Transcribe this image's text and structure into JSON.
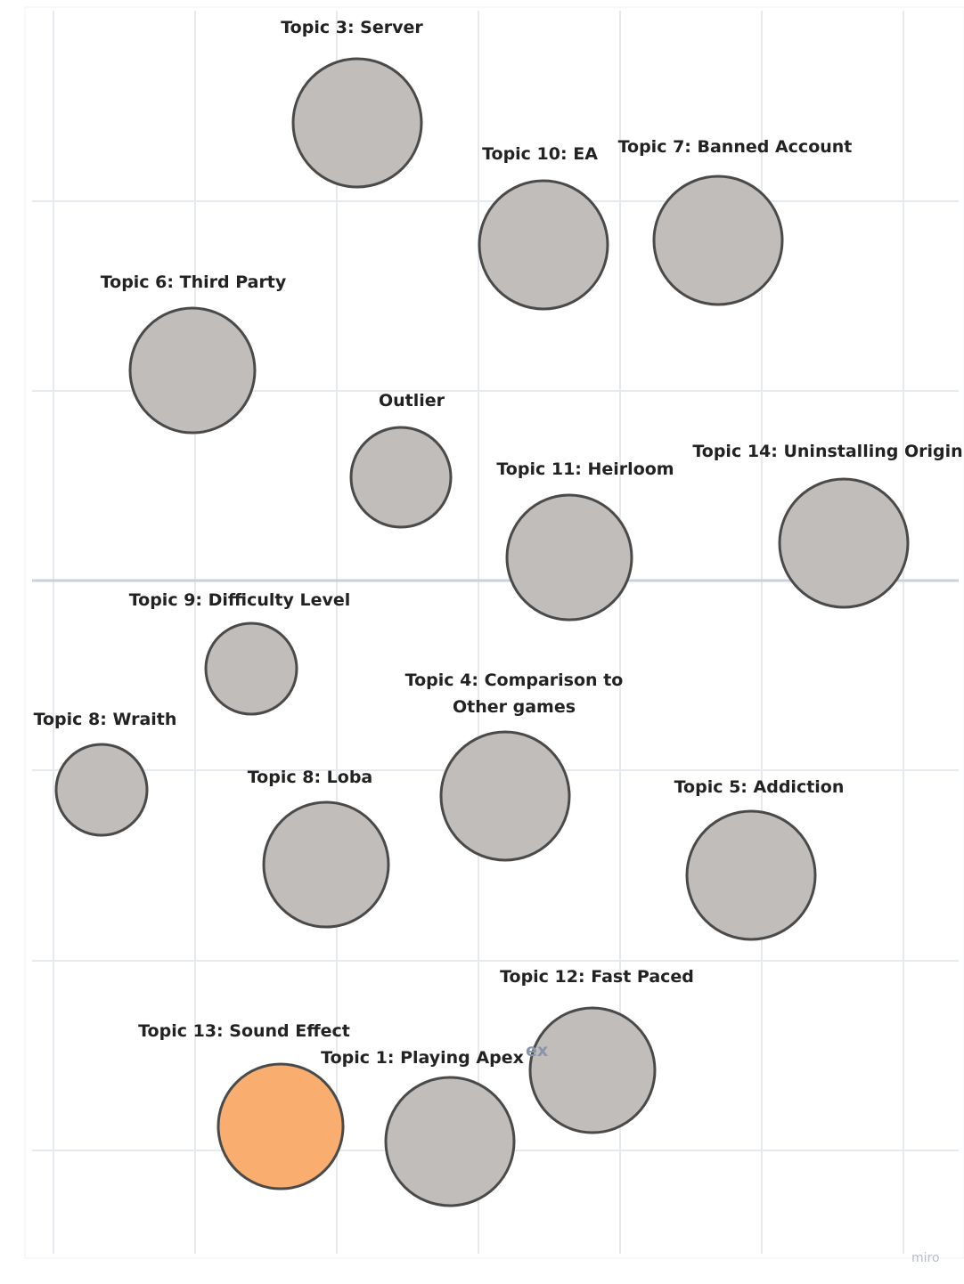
{
  "board": {
    "background": "#ffffff",
    "grid_color": "#e6eaef",
    "axis_color": "#c9d1dc",
    "watermark": "miro",
    "stray_text": "ex"
  },
  "colors": {
    "bubble_fill": "#c1bdba",
    "bubble_stroke": "#4a4a4a",
    "highlight_fill": "#f9ae6f"
  },
  "topics": [
    {
      "label": "Topic 3: Server",
      "highlight": false
    },
    {
      "label": "Topic 10: EA",
      "highlight": false
    },
    {
      "label": "Topic 7: Banned Account",
      "highlight": false
    },
    {
      "label": "Topic 6: Third Party",
      "highlight": false
    },
    {
      "label": "Outlier",
      "highlight": false
    },
    {
      "label": "Topic 11: Heirloom",
      "highlight": false
    },
    {
      "label": "Topic 14: Uninstalling Origin",
      "highlight": false
    },
    {
      "label": "Topic 9: Difficulty Level",
      "highlight": false
    },
    {
      "label": "Topic 4: Comparison to",
      "label2": "Other games",
      "highlight": false
    },
    {
      "label": "Topic 8: Wraith",
      "highlight": false
    },
    {
      "label": "Topic 8: Loba",
      "highlight": false
    },
    {
      "label": "Topic 5: Addiction",
      "highlight": false
    },
    {
      "label": "Topic 12: Fast Paced",
      "highlight": false
    },
    {
      "label": "Topic 13: Sound Effect",
      "highlight": true
    },
    {
      "label": "Topic 1: Playing Apex",
      "highlight": false
    }
  ]
}
